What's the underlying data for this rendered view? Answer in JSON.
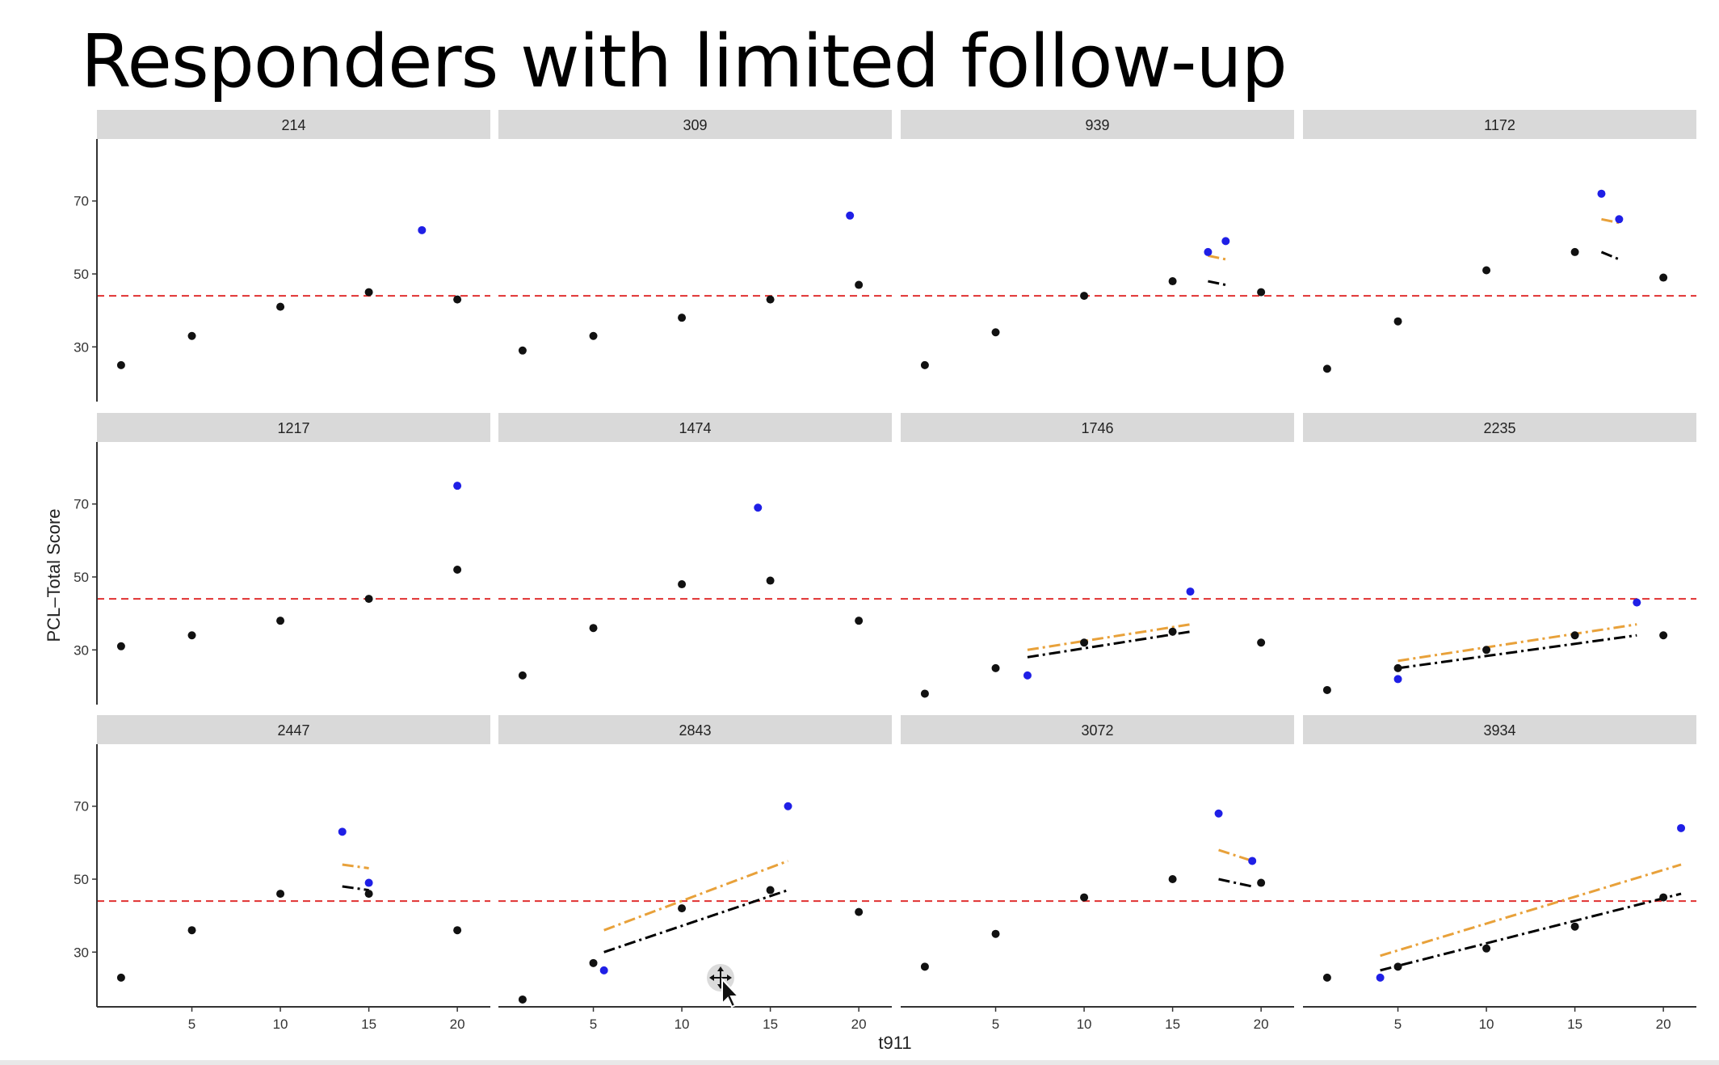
{
  "title": "Responders with limited follow-up",
  "colors": {
    "strip_bg": "#d9d9d9",
    "observed": "#111111",
    "highlight": "#1f1fe6",
    "threshold": "#e03030",
    "fit_black": "#000000",
    "fit_orange": "#e8a13a"
  },
  "cursor_icon": "move-cursor-icon",
  "chart_data": {
    "type": "scatter",
    "facets_layout": {
      "rows": 3,
      "cols": 4
    },
    "xlabel": "t911",
    "ylabel": "PCL–Total Score",
    "x_ticks": [
      "5",
      "10",
      "15",
      "20"
    ],
    "y_ticks": [
      "30",
      "50",
      "70"
    ],
    "xlim": [
      0,
      21.5
    ],
    "ylim": [
      15,
      87
    ],
    "threshold_y": 44,
    "panels": [
      {
        "id": "214",
        "points": [
          [
            1,
            25
          ],
          [
            5,
            33
          ],
          [
            10,
            41
          ],
          [
            15,
            45
          ],
          [
            20,
            43
          ]
        ],
        "highlight": [
          [
            18,
            62
          ]
        ],
        "fit_black": [],
        "fit_orange": []
      },
      {
        "id": "309",
        "points": [
          [
            1,
            29
          ],
          [
            5,
            33
          ],
          [
            10,
            38
          ],
          [
            15,
            43
          ],
          [
            20,
            47
          ]
        ],
        "highlight": [
          [
            19.5,
            66
          ]
        ],
        "fit_black": [],
        "fit_orange": []
      },
      {
        "id": "939",
        "points": [
          [
            1,
            25
          ],
          [
            5,
            34
          ],
          [
            10,
            44
          ],
          [
            15,
            48
          ],
          [
            20,
            45
          ]
        ],
        "highlight": [
          [
            17,
            56
          ],
          [
            18,
            59
          ]
        ],
        "fit_black": [
          [
            17,
            48
          ],
          [
            18,
            47
          ]
        ],
        "fit_orange": [
          [
            17,
            55
          ],
          [
            18,
            54
          ]
        ]
      },
      {
        "id": "1172",
        "points": [
          [
            1,
            24
          ],
          [
            5,
            37
          ],
          [
            10,
            51
          ],
          [
            15,
            56
          ],
          [
            20,
            49
          ]
        ],
        "highlight": [
          [
            16.5,
            72
          ],
          [
            17.5,
            65
          ]
        ],
        "fit_black": [
          [
            16.5,
            56
          ],
          [
            17.5,
            54
          ]
        ],
        "fit_orange": [
          [
            16.5,
            65
          ],
          [
            17.5,
            64
          ]
        ]
      },
      {
        "id": "1217",
        "points": [
          [
            1,
            31
          ],
          [
            5,
            34
          ],
          [
            10,
            38
          ],
          [
            15,
            44
          ],
          [
            20,
            52
          ]
        ],
        "highlight": [
          [
            20,
            75
          ]
        ],
        "fit_black": [],
        "fit_orange": []
      },
      {
        "id": "1474",
        "points": [
          [
            1,
            23
          ],
          [
            5,
            36
          ],
          [
            10,
            48
          ],
          [
            15,
            49
          ],
          [
            20,
            38
          ]
        ],
        "highlight": [
          [
            14.3,
            69
          ]
        ],
        "fit_black": [],
        "fit_orange": []
      },
      {
        "id": "1746",
        "points": [
          [
            1,
            18
          ],
          [
            5,
            25
          ],
          [
            10,
            32
          ],
          [
            15,
            35
          ],
          [
            20,
            32
          ]
        ],
        "highlight": [
          [
            6.8,
            23
          ],
          [
            16,
            46
          ]
        ],
        "fit_black": [
          [
            6.8,
            28
          ],
          [
            16,
            35
          ]
        ],
        "fit_orange": [
          [
            6.8,
            30
          ],
          [
            16,
            37
          ]
        ]
      },
      {
        "id": "2235",
        "points": [
          [
            1,
            19
          ],
          [
            5,
            25
          ],
          [
            10,
            30
          ],
          [
            15,
            34
          ],
          [
            20,
            34
          ]
        ],
        "highlight": [
          [
            5,
            22
          ],
          [
            18.5,
            43
          ]
        ],
        "fit_black": [
          [
            5,
            25
          ],
          [
            18.5,
            34
          ]
        ],
        "fit_orange": [
          [
            5,
            27
          ],
          [
            18.5,
            37
          ]
        ]
      },
      {
        "id": "2447",
        "points": [
          [
            1,
            23
          ],
          [
            5,
            36
          ],
          [
            10,
            46
          ],
          [
            15,
            46
          ],
          [
            20,
            36
          ]
        ],
        "highlight": [
          [
            13.5,
            63
          ],
          [
            15,
            49
          ]
        ],
        "fit_black": [
          [
            13.5,
            48
          ],
          [
            15,
            47
          ]
        ],
        "fit_orange": [
          [
            13.5,
            54
          ],
          [
            15,
            53
          ]
        ]
      },
      {
        "id": "2843",
        "points": [
          [
            1,
            17
          ],
          [
            5,
            27
          ],
          [
            10,
            42
          ],
          [
            15,
            47
          ],
          [
            20,
            41
          ]
        ],
        "highlight": [
          [
            5.6,
            25
          ],
          [
            16,
            70
          ]
        ],
        "fit_black": [
          [
            5.6,
            30
          ],
          [
            16,
            47
          ]
        ],
        "fit_orange": [
          [
            5.6,
            36
          ],
          [
            16,
            55
          ]
        ]
      },
      {
        "id": "3072",
        "points": [
          [
            1,
            26
          ],
          [
            5,
            35
          ],
          [
            10,
            45
          ],
          [
            15,
            50
          ],
          [
            20,
            49
          ]
        ],
        "highlight": [
          [
            17.6,
            68
          ],
          [
            19.5,
            55
          ]
        ],
        "fit_black": [
          [
            17.6,
            50
          ],
          [
            19.5,
            48
          ]
        ],
        "fit_orange": [
          [
            17.6,
            58
          ],
          [
            19.5,
            55
          ]
        ]
      },
      {
        "id": "3934",
        "points": [
          [
            1,
            23
          ],
          [
            5,
            26
          ],
          [
            10,
            31
          ],
          [
            15,
            37
          ],
          [
            20,
            45
          ]
        ],
        "highlight": [
          [
            4,
            23
          ],
          [
            21,
            64
          ]
        ],
        "fit_black": [
          [
            4,
            25
          ],
          [
            21,
            46
          ]
        ],
        "fit_orange": [
          [
            4,
            29
          ],
          [
            21,
            54
          ]
        ]
      }
    ]
  }
}
